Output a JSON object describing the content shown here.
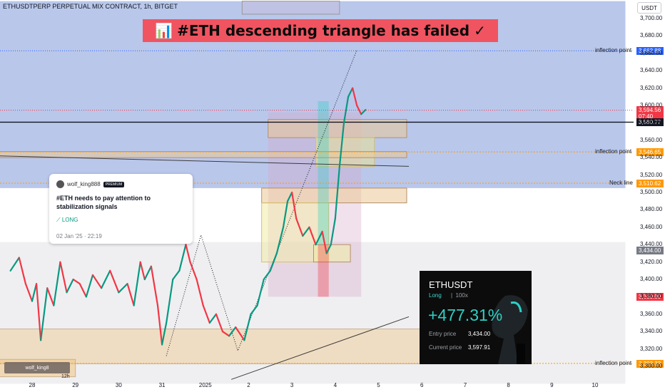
{
  "header": {
    "title": "ETHUSDTPERP PERPETUAL MIX CONTRACT, 1h, BITGET"
  },
  "banner": {
    "icon": "📊",
    "text": "#ETH descending triangle has failed",
    "check": "✓"
  },
  "currency_button": "USDT",
  "idea_card": {
    "user": "wolf_king888",
    "badge": "PREMIUM",
    "title": "#ETH needs to pay attention to stabilization signals",
    "tag": "LONG",
    "date": "02 Jan '25 · 22:19"
  },
  "position_card": {
    "symbol": "ETHUSDT",
    "side": "Long",
    "leverage": "100x",
    "pnl": "+477.31%",
    "entry_label": "Entry price",
    "entry_value": "3,434.00",
    "current_label": "Current price",
    "current_value": "3,597.91"
  },
  "watermark": "wolf_king8",
  "tick_extra": "12h",
  "level_labels": [
    {
      "price": 3662.88,
      "label": "inflection point"
    },
    {
      "price": 3546.65,
      "label": "inflection point"
    },
    {
      "price": 3510.62,
      "label": "Neck line"
    },
    {
      "price": 3303.33,
      "label": "inflection point"
    }
  ],
  "price_tags": [
    {
      "price": 3662.92,
      "text": "3,662.92",
      "color": "#089981"
    },
    {
      "price": 3662.88,
      "text": "3,662.88",
      "color": "#2962ff"
    },
    {
      "price": 3594.56,
      "text": "3,594.56",
      "sub": "07:40",
      "color": "#f23645"
    },
    {
      "price": 3580.77,
      "text": "3,580.77",
      "color": "#131722"
    },
    {
      "price": 3546.65,
      "text": "3,546.65",
      "color": "#ff9800"
    },
    {
      "price": 3510.62,
      "text": "3,510.62",
      "color": "#ff9800"
    },
    {
      "price": 3434.0,
      "text": "3,434.00",
      "color": "#787b86"
    },
    {
      "price": 3380.0,
      "text": "3,380.00",
      "color": "#f23645"
    },
    {
      "price": 3303.33,
      "text": "3,303.33",
      "color": "#ff9800"
    }
  ],
  "chart_data": {
    "type": "candlestick",
    "title": "ETHUSDTPERP PERPETUAL MIX CONTRACT, 1h, BITGET",
    "ylim": [
      3280,
      3720
    ],
    "y_ticks": [
      3700,
      3680,
      3660,
      3640,
      3620,
      3600,
      3580,
      3560,
      3540,
      3520,
      3500,
      3480,
      3460,
      3440,
      3420,
      3400,
      3380,
      3360,
      3340,
      3320,
      3300
    ],
    "y_tick_labels": [
      "3,700.00",
      "3,680.00",
      "3,660.00",
      "3,640.00",
      "3,620.00",
      "3,600.00",
      "3,580.00",
      "3,560.00",
      "3,540.00",
      "3,520.00",
      "3,500.00",
      "3,480.00",
      "3,460.00",
      "3,440.00",
      "3,420.00",
      "3,400.00",
      "3,380.00",
      "3,360.00",
      "3,340.00",
      "3,320.00",
      "3,300.00"
    ],
    "x_tick_labels": [
      "28",
      "29",
      "30",
      "31",
      "2025",
      "2",
      "3",
      "4",
      "5",
      "6",
      "7",
      "8",
      "9",
      "10"
    ],
    "x_tick_pos": [
      0,
      1,
      2,
      3,
      4,
      5,
      6,
      7,
      8,
      9,
      10,
      11,
      12,
      13
    ],
    "x_range": [
      -0.35,
      13.7
    ],
    "series_path": [
      [
        -0.5,
        3410
      ],
      [
        -0.3,
        3425
      ],
      [
        -0.15,
        3395
      ],
      [
        0.0,
        3375
      ],
      [
        0.1,
        3395
      ],
      [
        0.2,
        3330
      ],
      [
        0.35,
        3390
      ],
      [
        0.5,
        3370
      ],
      [
        0.65,
        3420
      ],
      [
        0.8,
        3385
      ],
      [
        0.95,
        3400
      ],
      [
        1.1,
        3395
      ],
      [
        1.25,
        3380
      ],
      [
        1.4,
        3405
      ],
      [
        1.6,
        3390
      ],
      [
        1.8,
        3410
      ],
      [
        2.0,
        3385
      ],
      [
        2.2,
        3395
      ],
      [
        2.35,
        3370
      ],
      [
        2.5,
        3420
      ],
      [
        2.6,
        3400
      ],
      [
        2.75,
        3415
      ],
      [
        2.9,
        3370
      ],
      [
        3.0,
        3325
      ],
      [
        3.1,
        3350
      ],
      [
        3.25,
        3400
      ],
      [
        3.4,
        3410
      ],
      [
        3.55,
        3440
      ],
      [
        3.65,
        3420
      ],
      [
        3.8,
        3400
      ],
      [
        3.95,
        3370
      ],
      [
        4.1,
        3350
      ],
      [
        4.25,
        3360
      ],
      [
        4.4,
        3340
      ],
      [
        4.55,
        3335
      ],
      [
        4.7,
        3345
      ],
      [
        4.9,
        3330
      ],
      [
        5.05,
        3360
      ],
      [
        5.2,
        3370
      ],
      [
        5.35,
        3400
      ],
      [
        5.5,
        3410
      ],
      [
        5.65,
        3430
      ],
      [
        5.8,
        3460
      ],
      [
        5.9,
        3490
      ],
      [
        6.0,
        3500
      ],
      [
        6.1,
        3470
      ],
      [
        6.25,
        3450
      ],
      [
        6.4,
        3460
      ],
      [
        6.55,
        3440
      ],
      [
        6.7,
        3455
      ],
      [
        6.8,
        3430
      ],
      [
        6.9,
        3440
      ],
      [
        7.0,
        3470
      ],
      [
        7.1,
        3530
      ],
      [
        7.2,
        3580
      ],
      [
        7.3,
        3610
      ],
      [
        7.4,
        3620
      ],
      [
        7.5,
        3600
      ],
      [
        7.6,
        3590
      ],
      [
        7.7,
        3595
      ]
    ]
  }
}
